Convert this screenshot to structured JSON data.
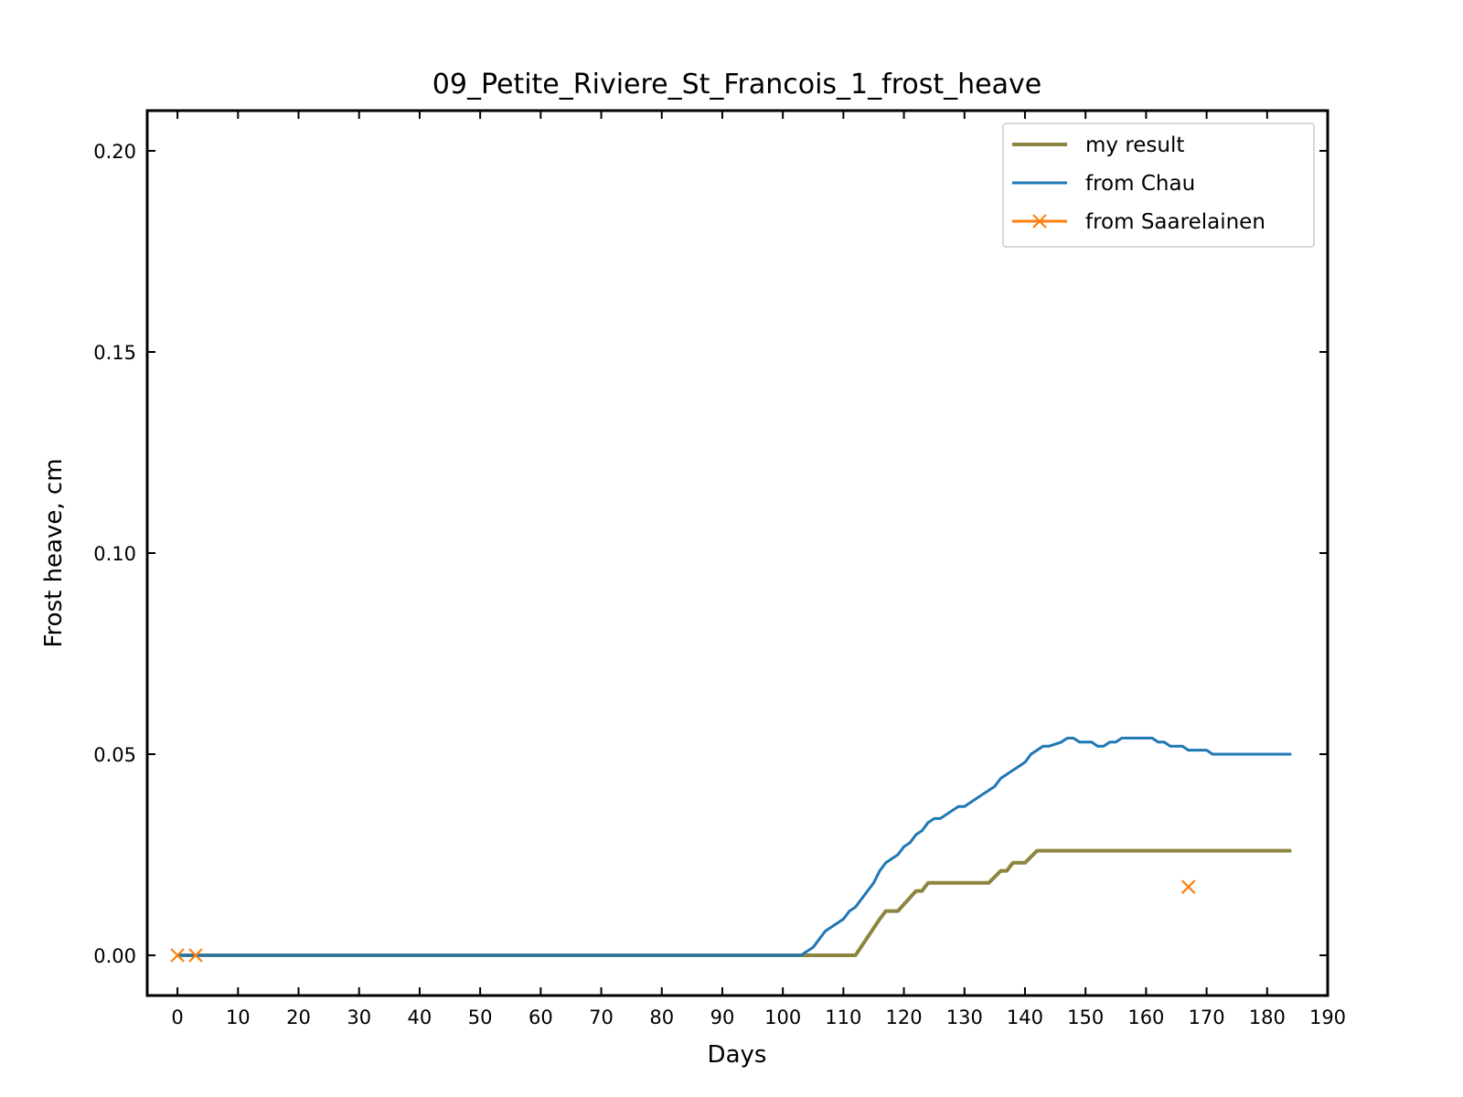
{
  "chart_data": {
    "type": "line",
    "title": "09_Petite_Riviere_St_Francois_1_frost_heave",
    "xlabel": "Days",
    "ylabel": "Frost heave, cm",
    "xlim": [
      -5,
      190
    ],
    "ylim": [
      -0.01,
      0.21
    ],
    "xticks": [
      0,
      10,
      20,
      30,
      40,
      50,
      60,
      70,
      80,
      90,
      100,
      110,
      120,
      130,
      140,
      150,
      160,
      170,
      180,
      190
    ],
    "xtick_labels": [
      "0",
      "10",
      "20",
      "30",
      "40",
      "50",
      "60",
      "70",
      "80",
      "90",
      "100",
      "110",
      "120",
      "130",
      "140",
      "150",
      "160",
      "170",
      "180",
      "190"
    ],
    "yticks": [
      0.0,
      0.05,
      0.1,
      0.15,
      0.2
    ],
    "ytick_labels": [
      "0.00",
      "0.05",
      "0.10",
      "0.15",
      "0.20"
    ],
    "grid": false,
    "legend_position": "top-right",
    "series": [
      {
        "name": "my result",
        "color": "#8c8540",
        "style": "line",
        "x": [
          0,
          103,
          112,
          116,
          117,
          119,
          122,
          123,
          124,
          127,
          130,
          134,
          136,
          137,
          138,
          140,
          142,
          150,
          160,
          170,
          184
        ],
        "y": [
          0,
          0,
          0,
          0.009,
          0.011,
          0.011,
          0.016,
          0.016,
          0.018,
          0.018,
          0.018,
          0.018,
          0.021,
          0.021,
          0.023,
          0.023,
          0.026,
          0.026,
          0.026,
          0.026,
          0.026
        ]
      },
      {
        "name": "from Chau",
        "color": "#1f77b4",
        "style": "line",
        "x": [
          0,
          103,
          105,
          107,
          110,
          111,
          112,
          114,
          115,
          116,
          117,
          119,
          120,
          121,
          122,
          123,
          124,
          125,
          126,
          127,
          128,
          129,
          130,
          131,
          132,
          133,
          134,
          135,
          136,
          137,
          138,
          139,
          140,
          141,
          142,
          143,
          144,
          146,
          147,
          148,
          149,
          150,
          151,
          152,
          153,
          154,
          155,
          156,
          157,
          158,
          159,
          160,
          161,
          162,
          163,
          164,
          165,
          166,
          167,
          168,
          169,
          170,
          171,
          175,
          180,
          184
        ],
        "y": [
          0,
          0,
          0.002,
          0.006,
          0.009,
          0.011,
          0.012,
          0.016,
          0.018,
          0.021,
          0.023,
          0.025,
          0.027,
          0.028,
          0.03,
          0.031,
          0.033,
          0.034,
          0.034,
          0.035,
          0.036,
          0.037,
          0.037,
          0.038,
          0.039,
          0.04,
          0.041,
          0.042,
          0.044,
          0.045,
          0.046,
          0.047,
          0.048,
          0.05,
          0.051,
          0.052,
          0.052,
          0.053,
          0.054,
          0.054,
          0.053,
          0.053,
          0.053,
          0.052,
          0.052,
          0.053,
          0.053,
          0.054,
          0.054,
          0.054,
          0.054,
          0.054,
          0.054,
          0.053,
          0.053,
          0.052,
          0.052,
          0.052,
          0.051,
          0.051,
          0.051,
          0.051,
          0.05,
          0.05,
          0.05,
          0.05
        ]
      },
      {
        "name": "from Saarelainen",
        "color": "#ff7f0e",
        "style": "marker-x",
        "x": [
          0,
          3,
          167
        ],
        "y": [
          0,
          0,
          0.017
        ]
      }
    ]
  }
}
